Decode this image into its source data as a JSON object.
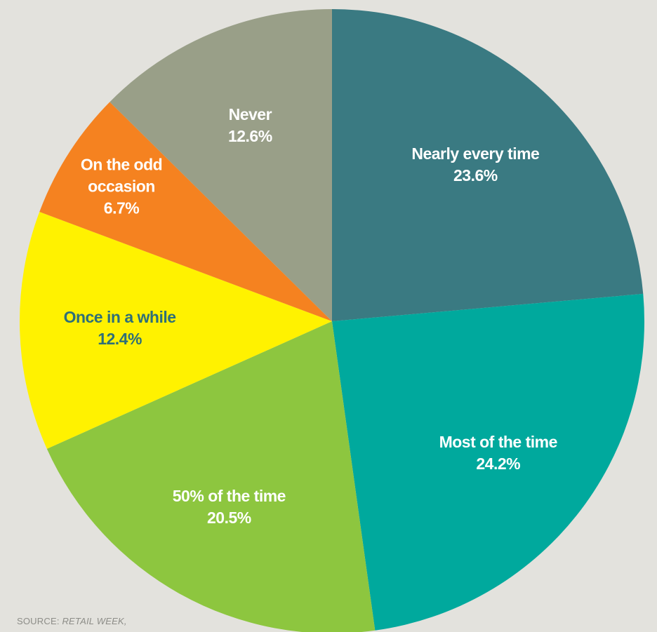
{
  "chart_data": {
    "type": "pie",
    "categories": [
      "Nearly every time",
      "Most of the time",
      "50% of the time",
      "Once in a while",
      "On the odd occasion",
      "Never"
    ],
    "values": [
      23.6,
      24.2,
      20.5,
      12.4,
      6.7,
      12.6
    ],
    "value_labels": [
      "23.6%",
      "24.2%",
      "20.5%",
      "12.4%",
      "6.7%",
      "12.6%"
    ],
    "colors": [
      "#3a7a82",
      "#00a99d",
      "#8dc63f",
      "#fff200",
      "#f58220",
      "#999f88"
    ],
    "label_colors": [
      "#ffffff",
      "#ffffff",
      "#ffffff",
      "#2e6f78",
      "#ffffff",
      "#ffffff"
    ],
    "source_label": "SOURCE:",
    "source_name": "RETAIL WEEK,"
  }
}
